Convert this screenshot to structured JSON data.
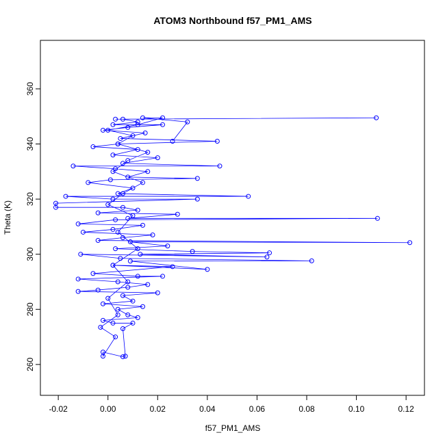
{
  "chart_data": {
    "type": "line",
    "title": "ATOM3 Northbound f57_PM1_AMS",
    "x_label": "f57_PM1_AMS",
    "y_label": "Theta (K)",
    "color": "#0000ff",
    "x": [
      0.003,
      0.108,
      0.006,
      0.012,
      0.002,
      0.022,
      0.008,
      -0.002,
      0.015,
      0.005,
      0.044,
      0.004,
      -0.006,
      0.012,
      0.002,
      0.02,
      0.006,
      0.045,
      -0.014,
      0.003,
      0.016,
      0.008,
      0.036,
      0.001,
      -0.008,
      0.01,
      0.004,
      0.0565,
      -0.017,
      0.002,
      0.036,
      -0.021,
      -0.021,
      0.006,
      0.012,
      -0.004,
      0.028,
      0.008,
      0.1085,
      0.003,
      -0.012,
      0.014,
      0.002,
      -0.01,
      0.018,
      0.006,
      -0.004,
      0.1215,
      0.009,
      0.024,
      0.003,
      0.034,
      0.065,
      0.013,
      0.064,
      -0.011,
      0.005,
      0.082,
      0.009,
      0.04,
      0.002,
      0.026,
      -0.006,
      0.012,
      0.022,
      -0.012,
      0.004,
      0.016,
      0.008,
      -0.004,
      -0.012,
      0.02,
      0.006,
      0.01,
      -0.002,
      0.014,
      0.004,
      0.008,
      0.012,
      -0.002,
      0.002,
      0.01,
      0.006,
      0.007,
      0.006,
      -0.002,
      -0.002,
      0.003,
      -0.003,
      0.004,
      0.0,
      0.008,
      0.002,
      0.012,
      0.004,
      0.01,
      0.0,
      0.006,
      0.014,
      0.002,
      0.008,
      0.016,
      0.004,
      0.01,
      0.0,
      0.012,
      0.022,
      0.014,
      0.032,
      0.026
    ],
    "y": [
      349,
      349.5,
      349,
      348,
      347,
      347,
      346,
      345,
      344,
      342,
      341,
      340,
      339,
      338,
      336,
      335,
      333,
      332,
      332,
      331,
      330,
      328,
      327.5,
      327,
      326,
      324,
      322,
      321,
      321,
      320,
      320,
      318.5,
      317,
      317,
      316,
      315,
      314.5,
      313,
      313,
      312.5,
      311,
      310.5,
      309,
      308,
      307,
      306,
      305,
      304.2,
      304.5,
      303,
      302,
      301,
      300.5,
      300,
      299,
      300,
      298.5,
      297.6,
      297.5,
      294.5,
      296,
      295.5,
      293,
      292,
      292,
      291,
      290,
      289,
      288,
      287,
      286.5,
      286,
      285,
      283,
      282,
      281,
      280,
      278,
      277,
      276,
      275,
      275,
      273,
      263,
      262.8,
      264.5,
      263,
      270,
      273.5,
      278,
      284,
      290,
      296,
      302,
      308,
      314,
      318,
      322,
      326,
      330,
      334,
      337,
      340,
      343,
      345,
      347,
      349.5,
      349.5,
      348,
      341
    ],
    "xlim": [
      -0.0272,
      0.1274
    ],
    "ylim": [
      248.8,
      377.6
    ],
    "xticks": [
      -0.02,
      {
        "value": 0,
        "label": "0.00"
      },
      0.02,
      0.04,
      0.06,
      0.08,
      {
        "value": 0.1,
        "label": "0.10"
      },
      0.12
    ],
    "yticks": [
      260,
      280,
      300,
      320,
      340,
      360
    ]
  }
}
